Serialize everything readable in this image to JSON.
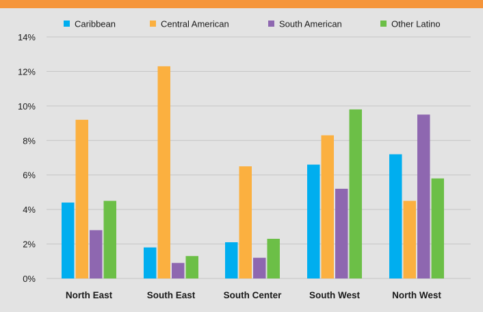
{
  "colors": {
    "background": "#e3e3e3",
    "top_bar": "#f5953a",
    "grid": "#c4c4c4"
  },
  "chart_data": {
    "type": "bar",
    "title": "",
    "xlabel": "",
    "ylabel": "",
    "ylim": [
      0,
      14
    ],
    "yticks": [
      0,
      2,
      4,
      6,
      8,
      10,
      12,
      14
    ],
    "ytick_labels": [
      "0%",
      "2%",
      "4%",
      "6%",
      "8%",
      "10%",
      "12%",
      "14%"
    ],
    "grid": true,
    "legend_position": "top",
    "categories": [
      "North East",
      "South East",
      "South Center",
      "South West",
      "North West"
    ],
    "series": [
      {
        "name": "Caribbean",
        "color": "#00aeef",
        "values": [
          4.4,
          1.8,
          2.1,
          6.6,
          7.2
        ]
      },
      {
        "name": "Central American",
        "color": "#fbb040",
        "values": [
          9.2,
          12.3,
          6.5,
          8.3,
          4.5
        ]
      },
      {
        "name": "South American",
        "color": "#8e67b0",
        "values": [
          2.8,
          0.9,
          1.2,
          5.2,
          9.5
        ]
      },
      {
        "name": "Other Latino",
        "color": "#6cbf47",
        "values": [
          4.5,
          1.3,
          2.3,
          9.8,
          5.8
        ]
      }
    ]
  }
}
